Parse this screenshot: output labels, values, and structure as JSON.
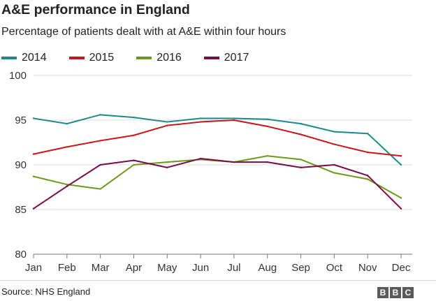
{
  "chart_data": {
    "type": "line",
    "title": "A&E performance in England",
    "subtitle": "Percentage of patients dealt with at A&E within four hours",
    "categories": [
      "Jan",
      "Feb",
      "Mar",
      "Apr",
      "May",
      "Jun",
      "Jul",
      "Aug",
      "Sep",
      "Oct",
      "Nov",
      "Dec"
    ],
    "ylim": [
      80,
      100
    ],
    "yticks": [
      80,
      85,
      90,
      95,
      100
    ],
    "grid": true,
    "legend_position": "top-left",
    "series": [
      {
        "name": "2014",
        "color": "#1a8a8a",
        "values": [
          95.2,
          94.6,
          95.6,
          95.3,
          94.8,
          95.2,
          95.2,
          95.1,
          94.6,
          93.7,
          93.5,
          90.0
        ]
      },
      {
        "name": "2015",
        "color": "#c8161b",
        "values": [
          91.2,
          92.0,
          92.7,
          93.3,
          94.4,
          94.8,
          95.0,
          94.3,
          93.4,
          92.3,
          91.4,
          91.0
        ]
      },
      {
        "name": "2016",
        "color": "#6b9a1a",
        "values": [
          88.7,
          87.8,
          87.3,
          90.0,
          90.3,
          90.6,
          90.3,
          91.0,
          90.6,
          89.1,
          88.4,
          86.3
        ]
      },
      {
        "name": "2017",
        "color": "#7a0b49",
        "values": [
          85.1,
          87.6,
          90.0,
          90.5,
          89.7,
          90.7,
          90.3,
          90.3,
          89.7,
          90.0,
          88.8,
          85.1
        ]
      }
    ],
    "source": "Source: NHS England",
    "brand": "BBC"
  }
}
